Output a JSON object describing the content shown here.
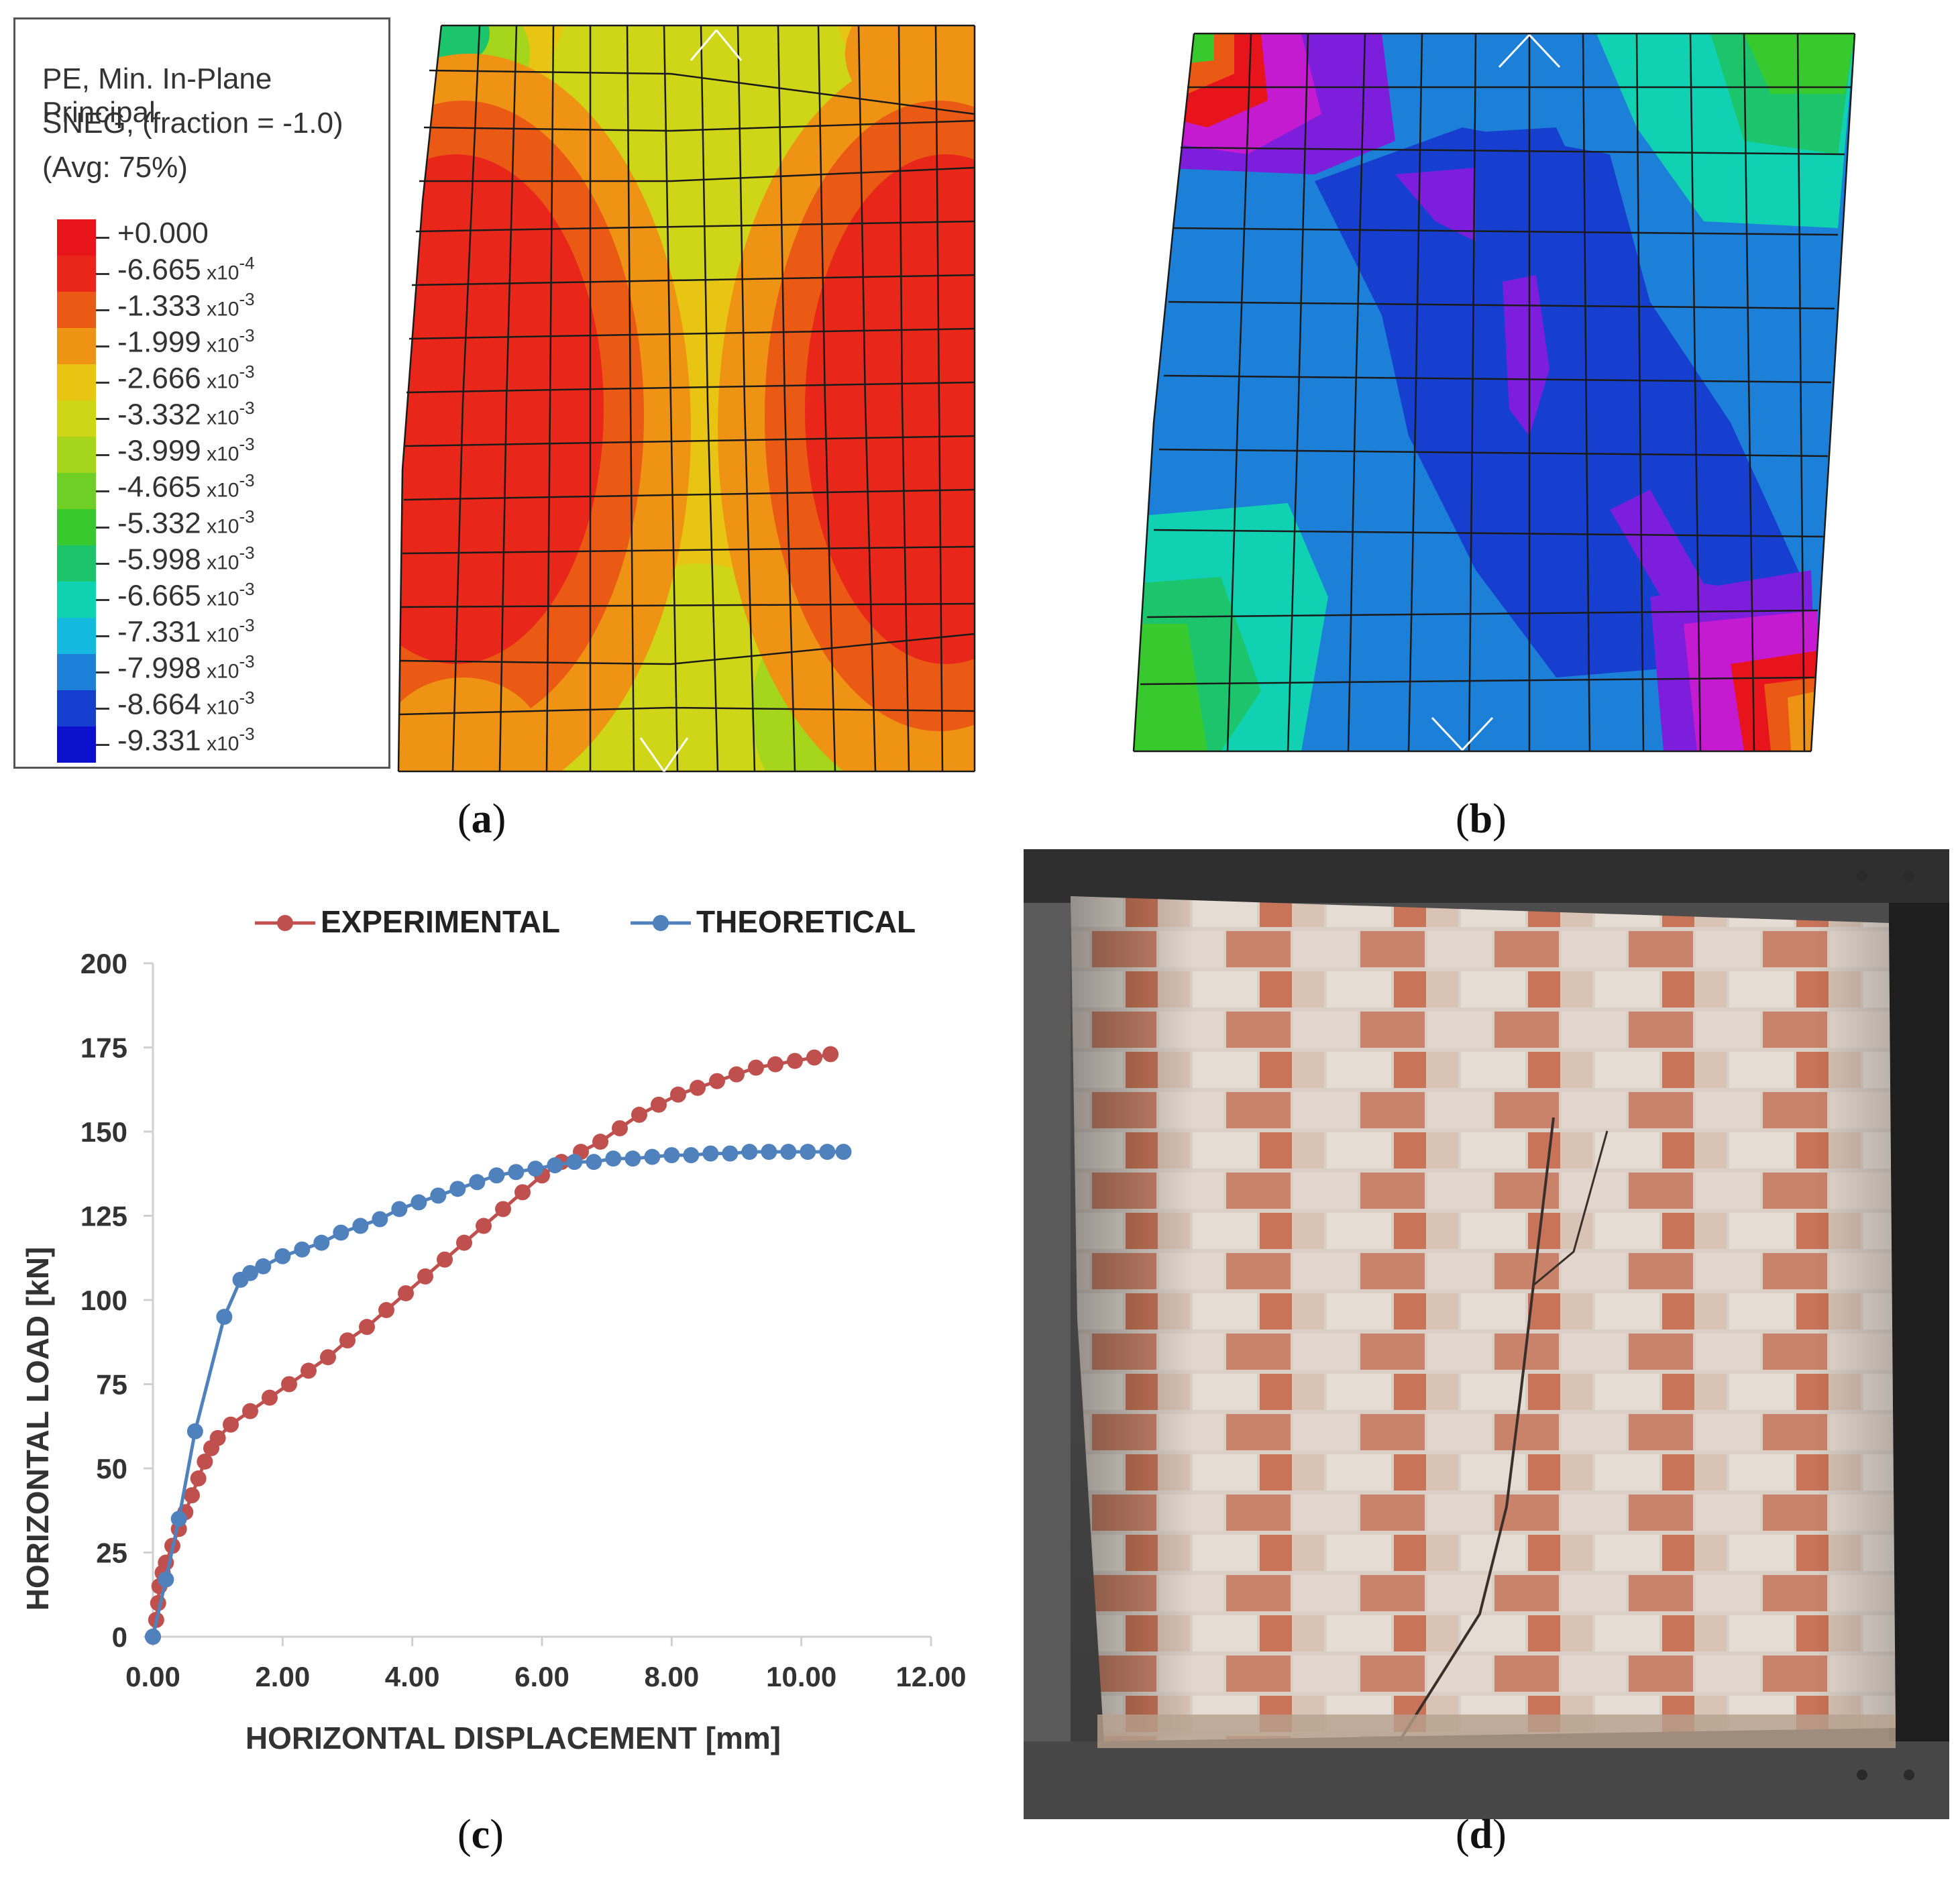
{
  "figure": {
    "panel_a": {
      "caption": "a",
      "legend": {
        "title_lines": [
          "PE, Min. In-Plane Principal",
          "SNEG, (fraction = -1.0)",
          "(Avg: 75%)"
        ],
        "levels": [
          {
            "mant": "+0.000",
            "exp": "",
            "color": "#e8141c"
          },
          {
            "mant": "-6.665",
            "exp": "-4",
            "color": "#e8271a"
          },
          {
            "mant": "-1.333",
            "exp": "-3",
            "color": "#ea5a14"
          },
          {
            "mant": "-1.999",
            "exp": "-3",
            "color": "#ef9314"
          },
          {
            "mant": "-2.666",
            "exp": "-3",
            "color": "#e9c513"
          },
          {
            "mant": "-3.332",
            "exp": "-3",
            "color": "#cfd517"
          },
          {
            "mant": "-3.999",
            "exp": "-3",
            "color": "#a6d61c"
          },
          {
            "mant": "-4.665",
            "exp": "-3",
            "color": "#6fcf25"
          },
          {
            "mant": "-5.332",
            "exp": "-3",
            "color": "#38c92e"
          },
          {
            "mant": "-5.998",
            "exp": "-3",
            "color": "#1cc56c"
          },
          {
            "mant": "-6.665",
            "exp": "-3",
            "color": "#11d1b3"
          },
          {
            "mant": "-7.331",
            "exp": "-3",
            "color": "#14b9e0"
          },
          {
            "mant": "-7.998",
            "exp": "-3",
            "color": "#1c80d8"
          },
          {
            "mant": "-8.664",
            "exp": "-3",
            "color": "#163fcf"
          },
          {
            "mant": "-9.331",
            "exp": "-3",
            "color": "#0a10cc"
          }
        ]
      }
    },
    "panel_b": {
      "caption": "b"
    },
    "panel_c": {
      "caption": "c"
    },
    "panel_d": {
      "caption": "d"
    }
  },
  "chart_data": {
    "type": "line",
    "title": "",
    "xlabel": "HORIZONTAL DISPLACEMENT [mm]",
    "ylabel": "HORIZONTAL LOAD  [kN]",
    "xlim": [
      0,
      12
    ],
    "ylim": [
      0,
      200
    ],
    "x_ticks": [
      "0.00",
      "2.00",
      "4.00",
      "6.00",
      "8.00",
      "10.00",
      "12.00"
    ],
    "y_ticks": [
      "0",
      "25",
      "50",
      "75",
      "100",
      "125",
      "150",
      "175",
      "200"
    ],
    "legend_position": "top",
    "series": [
      {
        "name": "EXPERIMENTAL",
        "color": "#c0504d",
        "points": [
          [
            0,
            0
          ],
          [
            0.05,
            5
          ],
          [
            0.08,
            10
          ],
          [
            0.1,
            15
          ],
          [
            0.15,
            19
          ],
          [
            0.2,
            22
          ],
          [
            0.3,
            27
          ],
          [
            0.4,
            32
          ],
          [
            0.5,
            37
          ],
          [
            0.6,
            42
          ],
          [
            0.7,
            47
          ],
          [
            0.8,
            52
          ],
          [
            0.9,
            56
          ],
          [
            1.0,
            59
          ],
          [
            1.2,
            63
          ],
          [
            1.5,
            67
          ],
          [
            1.8,
            71
          ],
          [
            2.1,
            75
          ],
          [
            2.4,
            79
          ],
          [
            2.7,
            83
          ],
          [
            3.0,
            88
          ],
          [
            3.3,
            92
          ],
          [
            3.6,
            97
          ],
          [
            3.9,
            102
          ],
          [
            4.2,
            107
          ],
          [
            4.5,
            112
          ],
          [
            4.8,
            117
          ],
          [
            5.1,
            122
          ],
          [
            5.4,
            127
          ],
          [
            5.7,
            132
          ],
          [
            6.0,
            137
          ],
          [
            6.3,
            141
          ],
          [
            6.6,
            144
          ],
          [
            6.9,
            147
          ],
          [
            7.2,
            151
          ],
          [
            7.5,
            155
          ],
          [
            7.8,
            158
          ],
          [
            8.1,
            161
          ],
          [
            8.4,
            163
          ],
          [
            8.7,
            165
          ],
          [
            9.0,
            167
          ],
          [
            9.3,
            169
          ],
          [
            9.6,
            170
          ],
          [
            9.9,
            171
          ],
          [
            10.2,
            172
          ],
          [
            10.45,
            173
          ]
        ]
      },
      {
        "name": "THEORETICAL",
        "color": "#4f81bd",
        "points": [
          [
            0,
            0
          ],
          [
            0.2,
            17
          ],
          [
            0.4,
            35
          ],
          [
            0.65,
            61
          ],
          [
            1.1,
            95
          ],
          [
            1.35,
            106
          ],
          [
            1.5,
            108
          ],
          [
            1.7,
            110
          ],
          [
            2.0,
            113
          ],
          [
            2.3,
            115
          ],
          [
            2.6,
            117
          ],
          [
            2.9,
            120
          ],
          [
            3.2,
            122
          ],
          [
            3.5,
            124
          ],
          [
            3.8,
            127
          ],
          [
            4.1,
            129
          ],
          [
            4.4,
            131
          ],
          [
            4.7,
            133
          ],
          [
            5.0,
            135
          ],
          [
            5.3,
            137
          ],
          [
            5.6,
            138
          ],
          [
            5.9,
            139
          ],
          [
            6.2,
            140
          ],
          [
            6.5,
            141
          ],
          [
            6.8,
            141
          ],
          [
            7.1,
            142
          ],
          [
            7.4,
            142
          ],
          [
            7.7,
            142.5
          ],
          [
            8.0,
            143
          ],
          [
            8.3,
            143
          ],
          [
            8.6,
            143.5
          ],
          [
            8.9,
            143.5
          ],
          [
            9.2,
            144
          ],
          [
            9.5,
            144
          ],
          [
            9.8,
            144
          ],
          [
            10.1,
            144
          ],
          [
            10.4,
            144
          ],
          [
            10.65,
            144
          ]
        ]
      }
    ]
  }
}
